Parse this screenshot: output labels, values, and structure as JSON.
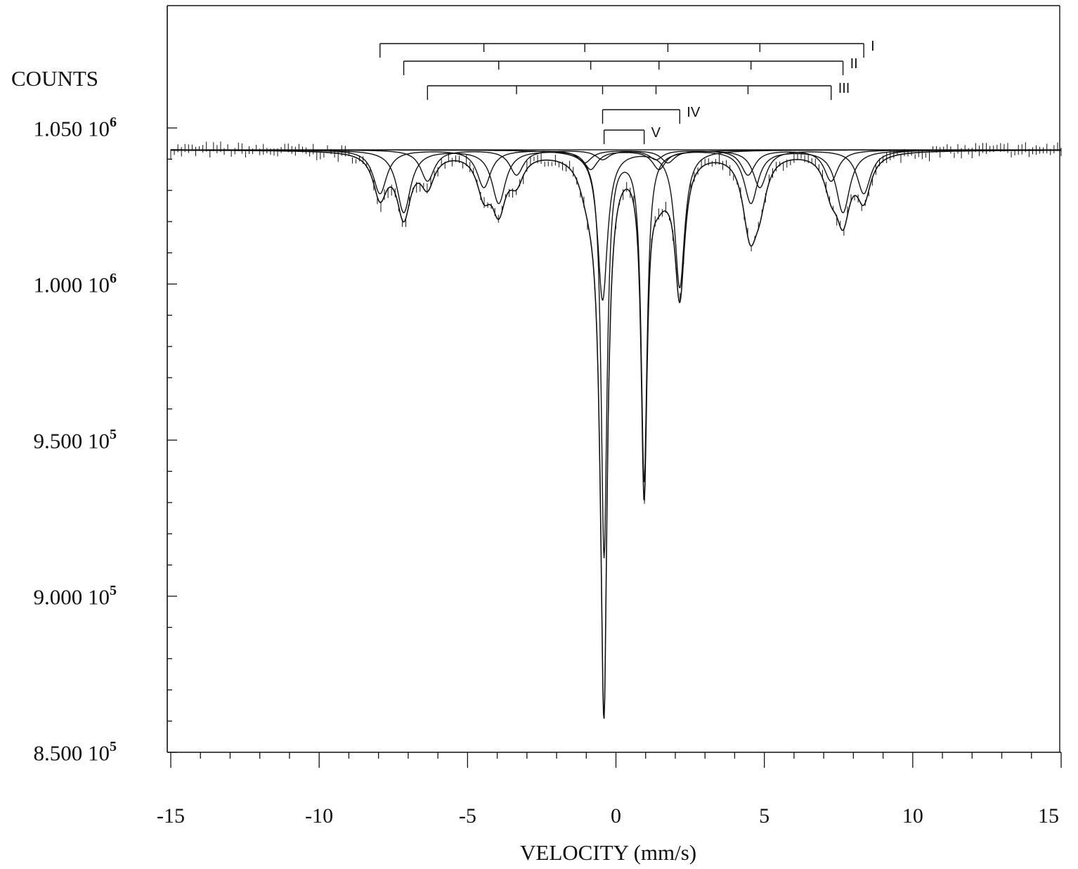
{
  "chart_data": {
    "type": "line",
    "title": "",
    "ylabel": "COUNTS",
    "xlabel": "VELOCITY (mm/s)",
    "xlim": [
      -15,
      15
    ],
    "ylim": [
      850000,
      1060000
    ],
    "grid": false,
    "x_ticks": [
      {
        "value": -15,
        "label": "-15"
      },
      {
        "value": -10,
        "label": "-10"
      },
      {
        "value": -5,
        "label": "-5"
      },
      {
        "value": 0,
        "label": "0"
      },
      {
        "value": 5,
        "label": "5"
      },
      {
        "value": 10,
        "label": "10"
      },
      {
        "value": 15,
        "label": "15"
      }
    ],
    "y_ticks": [
      {
        "value": 1050000,
        "mantissa": "1.050 10",
        "exp": "6"
      },
      {
        "value": 1000000,
        "mantissa": "1.000 10",
        "exp": "6"
      },
      {
        "value": 950000,
        "mantissa": "9.500 10",
        "exp": "5"
      },
      {
        "value": 900000,
        "mantissa": "9.000 10",
        "exp": "5"
      },
      {
        "value": 850000,
        "mantissa": "8.500 10",
        "exp": "5"
      }
    ],
    "baseline": 1043000,
    "subspectra": [
      {
        "name": "I",
        "type": "sextet",
        "positions": [
          -7.95,
          -4.45,
          -1.05,
          1.75,
          4.85,
          8.35
        ],
        "depths": [
          14000,
          12000,
          4000,
          4000,
          12000,
          14000
        ],
        "hwhm": 0.28
      },
      {
        "name": "II",
        "type": "sextet",
        "positions": [
          -7.15,
          -3.95,
          -0.85,
          1.45,
          4.55,
          7.65
        ],
        "depths": [
          20000,
          17000,
          6000,
          6000,
          17000,
          20000
        ],
        "hwhm": 0.28
      },
      {
        "name": "III",
        "type": "sextet",
        "positions": [
          -6.35,
          -3.35,
          -0.45,
          1.35,
          4.45,
          7.25
        ],
        "depths": [
          10000,
          8000,
          3000,
          3000,
          8000,
          10000
        ],
        "hwhm": 0.28
      },
      {
        "name": "IV",
        "type": "doublet",
        "positions": [
          -0.45,
          2.15
        ],
        "depths": [
          48000,
          44000
        ],
        "hwhm": 0.2
      },
      {
        "name": "V",
        "type": "doublet",
        "positions": [
          -0.4,
          0.95
        ],
        "depths": [
          130000,
          106000
        ],
        "hwhm": 0.12
      }
    ],
    "set_labels": [
      "I",
      "II",
      "III",
      "IV",
      "V"
    ]
  }
}
